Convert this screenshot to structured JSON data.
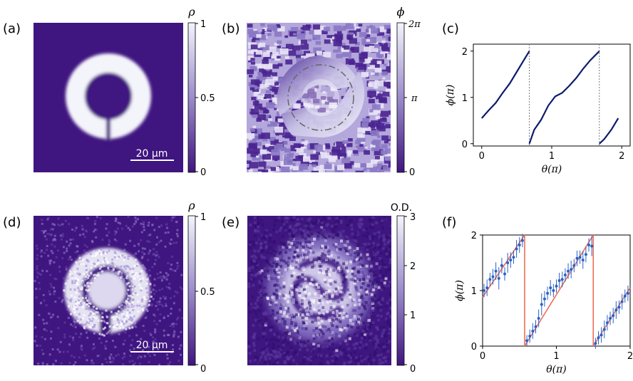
{
  "panels": {
    "a": {
      "label": "(a)",
      "colorbar_symbol": "ρ",
      "colorbar_ticks": [
        "1",
        "0.5",
        "0"
      ],
      "scalebar": "20 µm"
    },
    "b": {
      "label": "(b)",
      "colorbar_symbol": "ϕ",
      "colorbar_ticks": [
        "2π",
        "π",
        "0"
      ]
    },
    "c": {
      "label": "(c)"
    },
    "d": {
      "label": "(d)",
      "colorbar_symbol": "ρ",
      "colorbar_ticks": [
        "1",
        "0.5",
        "0"
      ],
      "scalebar": "20 µm"
    },
    "e": {
      "label": "(e)",
      "colorbar_symbol": "O.D.",
      "colorbar_ticks": [
        "3",
        "2",
        "1",
        "0"
      ]
    },
    "f": {
      "label": "(f)"
    }
  },
  "colors": {
    "background_dark": "#3f1580",
    "colormap_light": "#f4f4fb",
    "line_dark": "#0d1b6e",
    "marker_blue": "#2a62c7",
    "fit_red": "#ee6b55",
    "dash": "#777777"
  },
  "chart_data": [
    {
      "panel": "c",
      "type": "line",
      "xlabel": "θ(π)",
      "ylabel": "ϕ(π)",
      "xlim": [
        -0.12,
        2.12
      ],
      "ylim": [
        -0.05,
        2.15
      ],
      "xticks": [
        "0",
        "1",
        "2"
      ],
      "yticks": [
        "0",
        "1",
        "2"
      ],
      "dashed_vlines": [
        0.68,
        1.68
      ],
      "series": [
        {
          "x": [
            0.0,
            0.1,
            0.2,
            0.3,
            0.4,
            0.5,
            0.6,
            0.68
          ],
          "y": [
            0.55,
            0.72,
            0.88,
            1.1,
            1.3,
            1.55,
            1.8,
            2.0
          ]
        },
        {
          "x": [
            0.68,
            0.75,
            0.85,
            0.95,
            1.05,
            1.15,
            1.25,
            1.35,
            1.45,
            1.55,
            1.68
          ],
          "y": [
            0.0,
            0.3,
            0.52,
            0.82,
            1.02,
            1.1,
            1.25,
            1.42,
            1.62,
            1.8,
            2.0
          ]
        },
        {
          "x": [
            1.68,
            1.75,
            1.85,
            1.95
          ],
          "y": [
            0.0,
            0.1,
            0.3,
            0.55
          ]
        }
      ]
    },
    {
      "panel": "f",
      "type": "scatter",
      "xlabel": "θ(π)",
      "ylabel": "ϕ(π)",
      "xlim": [
        0.0,
        2.0
      ],
      "ylim": [
        0.0,
        2.0
      ],
      "xticks": [
        "0",
        "1",
        "2"
      ],
      "yticks": [
        "0",
        "1",
        "2"
      ],
      "fit": [
        {
          "x": [
            0.0,
            0.57
          ],
          "y": [
            0.88,
            2.0
          ]
        },
        {
          "x": [
            0.57,
            1.5
          ],
          "y": [
            0.0,
            2.0
          ]
        },
        {
          "x": [
            1.5,
            2.0
          ],
          "y": [
            0.0,
            1.05
          ]
        }
      ],
      "points": {
        "x": [
          0.02,
          0.06,
          0.1,
          0.14,
          0.18,
          0.22,
          0.26,
          0.3,
          0.34,
          0.38,
          0.42,
          0.46,
          0.5,
          0.54,
          0.6,
          0.64,
          0.68,
          0.72,
          0.76,
          0.8,
          0.84,
          0.88,
          0.92,
          0.96,
          1.0,
          1.04,
          1.08,
          1.12,
          1.16,
          1.2,
          1.24,
          1.28,
          1.32,
          1.36,
          1.4,
          1.44,
          1.48,
          1.53,
          1.57,
          1.61,
          1.65,
          1.69,
          1.73,
          1.77,
          1.81,
          1.85,
          1.89,
          1.93,
          1.97
        ],
        "y": [
          1.0,
          1.05,
          1.2,
          1.25,
          1.35,
          1.22,
          1.45,
          1.3,
          1.5,
          1.55,
          1.6,
          1.75,
          1.82,
          1.9,
          0.1,
          0.18,
          0.27,
          0.35,
          0.5,
          0.75,
          0.85,
          0.95,
          1.05,
          1.0,
          1.08,
          1.18,
          1.2,
          1.28,
          1.35,
          1.38,
          1.45,
          1.58,
          1.6,
          1.55,
          1.65,
          1.82,
          1.8,
          0.05,
          0.15,
          0.2,
          0.3,
          0.42,
          0.5,
          0.55,
          0.65,
          0.7,
          0.8,
          0.9,
          0.95
        ],
        "err": [
          0.12,
          0.15,
          0.12,
          0.14,
          0.16,
          0.2,
          0.14,
          0.12,
          0.18,
          0.14,
          0.12,
          0.16,
          0.14,
          0.12,
          0.1,
          0.12,
          0.14,
          0.12,
          0.16,
          0.2,
          0.14,
          0.12,
          0.14,
          0.12,
          0.12,
          0.14,
          0.14,
          0.12,
          0.14,
          0.16,
          0.12,
          0.14,
          0.12,
          0.16,
          0.14,
          0.12,
          0.18,
          0.1,
          0.12,
          0.14,
          0.16,
          0.14,
          0.12,
          0.14,
          0.16,
          0.12,
          0.14,
          0.12,
          0.14
        ]
      }
    }
  ]
}
